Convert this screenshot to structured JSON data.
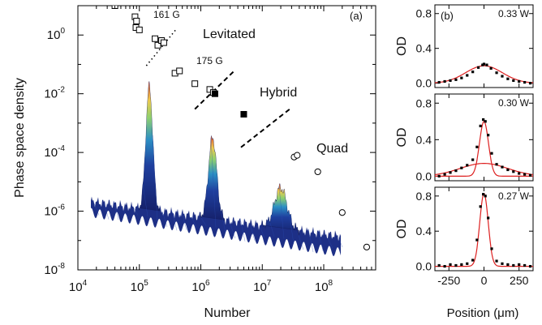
{
  "chart_data": [
    {
      "type": "scatter",
      "panel_label": "(a)",
      "xlabel": "Number",
      "ylabel": "Phase space density",
      "x_scale": "log",
      "y_scale": "log",
      "xlim": [
        10000,
        700000000
      ],
      "ylim": [
        1e-08,
        10
      ],
      "x_ticks": [
        {
          "value": 10000,
          "mantissa": "10",
          "exp": "4"
        },
        {
          "value": 100000,
          "mantissa": "10",
          "exp": "5"
        },
        {
          "value": 1000000,
          "mantissa": "10",
          "exp": "6"
        },
        {
          "value": 10000000,
          "mantissa": "10",
          "exp": "7"
        },
        {
          "value": 100000000,
          "mantissa": "10",
          "exp": "8"
        }
      ],
      "y_ticks": [
        {
          "value": 1,
          "mantissa": "10",
          "exp": "0"
        },
        {
          "value": 0.01,
          "mantissa": "10",
          "exp": "-2"
        },
        {
          "value": 0.0001,
          "mantissa": "10",
          "exp": "-4"
        },
        {
          "value": 1e-06,
          "mantissa": "10",
          "exp": "-6"
        },
        {
          "value": 1e-08,
          "mantissa": "10",
          "exp": "-8"
        }
      ],
      "region_labels": [
        "Levitated",
        "Hybrid",
        "Quad"
      ],
      "annotations": [
        "161 G",
        "175 G"
      ],
      "series": [
        {
          "marker": "open-square",
          "points": [
            [
              85000,
              4.2
            ],
            [
              90000,
              3.0
            ],
            [
              88000,
              1.8
            ],
            [
              100000,
              1.5
            ],
            [
              180000,
              0.75
            ],
            [
              200000,
              0.45
            ],
            [
              230000,
              0.65
            ],
            [
              250000,
              0.55
            ],
            [
              380000,
              0.05
            ],
            [
              450000,
              0.06
            ],
            [
              800000,
              0.022
            ],
            [
              1400000,
              0.014
            ],
            [
              1600000,
              0.011
            ],
            [
              40000,
              10
            ]
          ]
        },
        {
          "marker": "filled-square",
          "points": [
            [
              1700000,
              0.01
            ],
            [
              5000000,
              0.002
            ]
          ]
        },
        {
          "marker": "open-circle",
          "points": [
            [
              33000000,
              7e-05
            ],
            [
              37000000,
              8e-05
            ],
            [
              80000000,
              2.2e-05
            ],
            [
              200000000,
              9e-07
            ],
            [
              500000000,
              6e-08
            ]
          ]
        }
      ],
      "dividers": [
        {
          "style": "dotted",
          "points": [
            [
              130000,
              0.09
            ],
            [
              400000,
              1.6
            ]
          ]
        },
        {
          "style": "dashed",
          "points": [
            [
              800000,
              0.003
            ],
            [
              3500000,
              0.06
            ]
          ]
        },
        {
          "style": "dashed",
          "points": [
            [
              4500000,
              0.00015
            ],
            [
              28000000,
              0.003
            ]
          ]
        }
      ],
      "surface_colors": [
        "#1a2a80",
        "#1f4fb0",
        "#2aa0c8",
        "#9fd36a",
        "#f2c94c",
        "#d9482a"
      ]
    },
    {
      "type": "line",
      "panel_label": "(b)",
      "ylabel": "OD",
      "xlabel": "Position (μm)",
      "xlim": [
        -350,
        350
      ],
      "ylim": [
        -0.05,
        0.9
      ],
      "x_ticks": [
        "-250",
        "0",
        "250"
      ],
      "y_ticks": [
        "0.0",
        "0.4",
        "0.8"
      ],
      "fit_color": "#dd1f1f",
      "panels": [
        {
          "power": "0.33 W",
          "fits": [
            {
              "amp": 0.2,
              "sigma": 130
            }
          ],
          "points": [
            [
              -320,
              0.01
            ],
            [
              -280,
              0.02
            ],
            [
              -240,
              0.03
            ],
            [
              -200,
              0.04
            ],
            [
              -160,
              0.06
            ],
            [
              -120,
              0.09
            ],
            [
              -80,
              0.13
            ],
            [
              -40,
              0.18
            ],
            [
              -10,
              0.21
            ],
            [
              0,
              0.22
            ],
            [
              20,
              0.21
            ],
            [
              50,
              0.17
            ],
            [
              90,
              0.12
            ],
            [
              130,
              0.08
            ],
            [
              170,
              0.05
            ],
            [
              210,
              0.03
            ],
            [
              250,
              0.02
            ],
            [
              290,
              0.01
            ],
            [
              330,
              0.0
            ]
          ]
        },
        {
          "power": "0.30 W",
          "fits": [
            {
              "amp": 0.6,
              "sigma": 32
            },
            {
              "amp": 0.14,
              "sigma": 170
            }
          ],
          "points": [
            [
              -320,
              0.0
            ],
            [
              -280,
              0.02
            ],
            [
              -240,
              0.04
            ],
            [
              -200,
              0.06
            ],
            [
              -160,
              0.09
            ],
            [
              -120,
              0.12
            ],
            [
              -80,
              0.18
            ],
            [
              -50,
              0.32
            ],
            [
              -25,
              0.55
            ],
            [
              -5,
              0.62
            ],
            [
              10,
              0.6
            ],
            [
              30,
              0.45
            ],
            [
              55,
              0.25
            ],
            [
              90,
              0.13
            ],
            [
              130,
              0.1
            ],
            [
              170,
              0.07
            ],
            [
              210,
              0.05
            ],
            [
              250,
              0.03
            ],
            [
              290,
              0.02
            ],
            [
              330,
              0.01
            ]
          ]
        },
        {
          "power": "0.27 W",
          "fits": [
            {
              "amp": 0.83,
              "sigma": 30
            }
          ],
          "points": [
            [
              -320,
              0.01
            ],
            [
              -280,
              0.0
            ],
            [
              -240,
              0.02
            ],
            [
              -200,
              0.01
            ],
            [
              -160,
              0.02
            ],
            [
              -120,
              0.03
            ],
            [
              -80,
              0.07
            ],
            [
              -50,
              0.3
            ],
            [
              -25,
              0.68
            ],
            [
              -5,
              0.82
            ],
            [
              10,
              0.8
            ],
            [
              30,
              0.55
            ],
            [
              55,
              0.2
            ],
            [
              90,
              0.06
            ],
            [
              130,
              0.03
            ],
            [
              170,
              0.02
            ],
            [
              210,
              0.01
            ],
            [
              250,
              0.02
            ],
            [
              290,
              0.01
            ],
            [
              330,
              0.0
            ]
          ]
        }
      ]
    }
  ]
}
